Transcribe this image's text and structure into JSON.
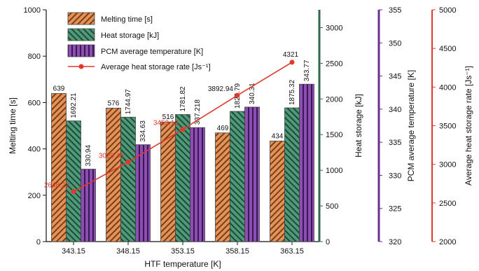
{
  "chart_data": {
    "type": "bar",
    "xlabel": "HTF temperature [K]",
    "categories": [
      "343.15",
      "348.15",
      "353.15",
      "358.15",
      "363.15"
    ],
    "axes": {
      "melting_time": {
        "label": "Melting time [s]",
        "range": [
          0,
          1000
        ],
        "ticks": [
          0,
          200,
          400,
          600,
          800,
          1000
        ],
        "color": "#111111"
      },
      "heat_storage": {
        "label": "Heat storage [kJ]",
        "range": [
          0,
          3250
        ],
        "ticks": [
          0,
          500,
          1000,
          1500,
          2000,
          2500,
          3000
        ],
        "color": "#2e6b4a"
      },
      "pcm_temperature": {
        "label": "PCM average temperature [K]",
        "range": [
          320,
          355
        ],
        "ticks": [
          320,
          325,
          330,
          335,
          340,
          345,
          350,
          355
        ],
        "color": "#6a2f8e"
      },
      "heat_storage_rate": {
        "label": "Average heat storage rate [Js⁻¹]",
        "range": [
          2000,
          5000
        ],
        "ticks": [
          2000,
          2500,
          3000,
          3500,
          4000,
          4500,
          5000
        ],
        "color": "#e0392b"
      }
    },
    "series": [
      {
        "name": "Melting time [s]",
        "axis": "melting_time",
        "kind": "bar",
        "color": "#e3935a",
        "values": [
          639,
          576,
          516,
          469,
          434
        ],
        "labels": [
          "639",
          "576",
          "516",
          "469",
          "434"
        ]
      },
      {
        "name": "Heat storage [kJ]",
        "axis": "heat_storage",
        "kind": "bar",
        "color": "#4e9a7a",
        "values": [
          1692.21,
          1744.97,
          1781.82,
          1825.79,
          1875.32
        ],
        "labels": [
          "1692.21",
          "1744.97",
          "1781.82",
          "1825.79",
          "1875.32"
        ]
      },
      {
        "name": "PCM average temperature [K]",
        "axis": "pcm_temperature",
        "kind": "bar",
        "color": "#8a4fb0",
        "values": [
          330.94,
          334.63,
          337.218,
          340.31,
          343.77
        ],
        "labels": [
          "330.94",
          "334.63",
          "337.218",
          "340.31",
          "343.77"
        ]
      },
      {
        "name": "Average heat storage rate [Js⁻¹]",
        "axis": "heat_storage_rate",
        "kind": "line",
        "color": "#e0392b",
        "values": [
          2648.22,
          3029.45,
          3453.13,
          3892.94,
          4321
        ],
        "labels": [
          "2648.22",
          "3029.45",
          "3453.13",
          "3892.94",
          "4321"
        ]
      }
    ],
    "legend": {
      "position": "top-left"
    },
    "grid": false
  }
}
